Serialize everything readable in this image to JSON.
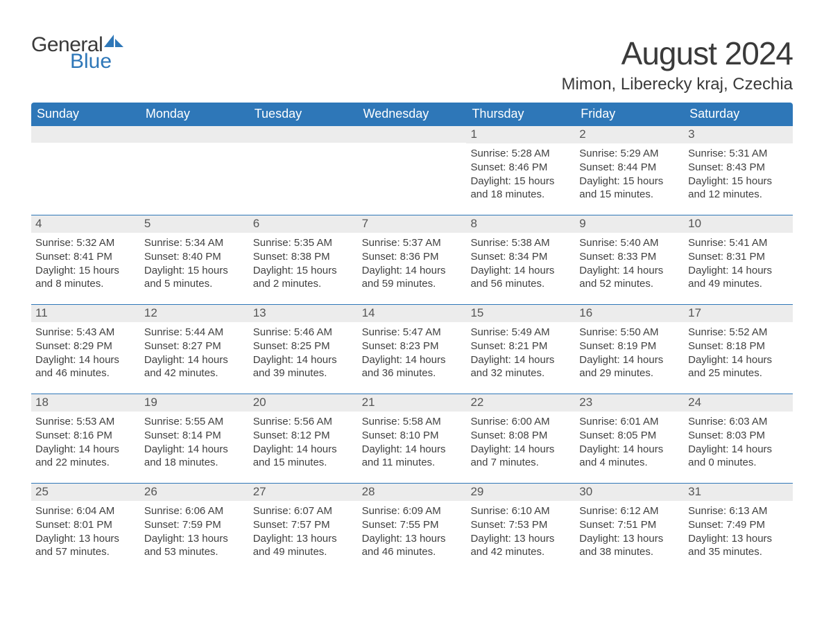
{
  "logo": {
    "text1": "General",
    "text2": "Blue",
    "sail_color": "#2e77b8"
  },
  "title": "August 2024",
  "location": "Mimon, Liberecky kraj, Czechia",
  "colors": {
    "header_bg": "#2e77b8",
    "daynum_bg": "#ececec",
    "row_border": "#2e77b8",
    "text": "#3a3a3a"
  },
  "weekdays": [
    "Sunday",
    "Monday",
    "Tuesday",
    "Wednesday",
    "Thursday",
    "Friday",
    "Saturday"
  ],
  "weeks": [
    [
      null,
      null,
      null,
      null,
      {
        "n": "1",
        "sunrise": "5:28 AM",
        "sunset": "8:46 PM",
        "daylight": "15 hours and 18 minutes."
      },
      {
        "n": "2",
        "sunrise": "5:29 AM",
        "sunset": "8:44 PM",
        "daylight": "15 hours and 15 minutes."
      },
      {
        "n": "3",
        "sunrise": "5:31 AM",
        "sunset": "8:43 PM",
        "daylight": "15 hours and 12 minutes."
      }
    ],
    [
      {
        "n": "4",
        "sunrise": "5:32 AM",
        "sunset": "8:41 PM",
        "daylight": "15 hours and 8 minutes."
      },
      {
        "n": "5",
        "sunrise": "5:34 AM",
        "sunset": "8:40 PM",
        "daylight": "15 hours and 5 minutes."
      },
      {
        "n": "6",
        "sunrise": "5:35 AM",
        "sunset": "8:38 PM",
        "daylight": "15 hours and 2 minutes."
      },
      {
        "n": "7",
        "sunrise": "5:37 AM",
        "sunset": "8:36 PM",
        "daylight": "14 hours and 59 minutes."
      },
      {
        "n": "8",
        "sunrise": "5:38 AM",
        "sunset": "8:34 PM",
        "daylight": "14 hours and 56 minutes."
      },
      {
        "n": "9",
        "sunrise": "5:40 AM",
        "sunset": "8:33 PM",
        "daylight": "14 hours and 52 minutes."
      },
      {
        "n": "10",
        "sunrise": "5:41 AM",
        "sunset": "8:31 PM",
        "daylight": "14 hours and 49 minutes."
      }
    ],
    [
      {
        "n": "11",
        "sunrise": "5:43 AM",
        "sunset": "8:29 PM",
        "daylight": "14 hours and 46 minutes."
      },
      {
        "n": "12",
        "sunrise": "5:44 AM",
        "sunset": "8:27 PM",
        "daylight": "14 hours and 42 minutes."
      },
      {
        "n": "13",
        "sunrise": "5:46 AM",
        "sunset": "8:25 PM",
        "daylight": "14 hours and 39 minutes."
      },
      {
        "n": "14",
        "sunrise": "5:47 AM",
        "sunset": "8:23 PM",
        "daylight": "14 hours and 36 minutes."
      },
      {
        "n": "15",
        "sunrise": "5:49 AM",
        "sunset": "8:21 PM",
        "daylight": "14 hours and 32 minutes."
      },
      {
        "n": "16",
        "sunrise": "5:50 AM",
        "sunset": "8:19 PM",
        "daylight": "14 hours and 29 minutes."
      },
      {
        "n": "17",
        "sunrise": "5:52 AM",
        "sunset": "8:18 PM",
        "daylight": "14 hours and 25 minutes."
      }
    ],
    [
      {
        "n": "18",
        "sunrise": "5:53 AM",
        "sunset": "8:16 PM",
        "daylight": "14 hours and 22 minutes."
      },
      {
        "n": "19",
        "sunrise": "5:55 AM",
        "sunset": "8:14 PM",
        "daylight": "14 hours and 18 minutes."
      },
      {
        "n": "20",
        "sunrise": "5:56 AM",
        "sunset": "8:12 PM",
        "daylight": "14 hours and 15 minutes."
      },
      {
        "n": "21",
        "sunrise": "5:58 AM",
        "sunset": "8:10 PM",
        "daylight": "14 hours and 11 minutes."
      },
      {
        "n": "22",
        "sunrise": "6:00 AM",
        "sunset": "8:08 PM",
        "daylight": "14 hours and 7 minutes."
      },
      {
        "n": "23",
        "sunrise": "6:01 AM",
        "sunset": "8:05 PM",
        "daylight": "14 hours and 4 minutes."
      },
      {
        "n": "24",
        "sunrise": "6:03 AM",
        "sunset": "8:03 PM",
        "daylight": "14 hours and 0 minutes."
      }
    ],
    [
      {
        "n": "25",
        "sunrise": "6:04 AM",
        "sunset": "8:01 PM",
        "daylight": "13 hours and 57 minutes."
      },
      {
        "n": "26",
        "sunrise": "6:06 AM",
        "sunset": "7:59 PM",
        "daylight": "13 hours and 53 minutes."
      },
      {
        "n": "27",
        "sunrise": "6:07 AM",
        "sunset": "7:57 PM",
        "daylight": "13 hours and 49 minutes."
      },
      {
        "n": "28",
        "sunrise": "6:09 AM",
        "sunset": "7:55 PM",
        "daylight": "13 hours and 46 minutes."
      },
      {
        "n": "29",
        "sunrise": "6:10 AM",
        "sunset": "7:53 PM",
        "daylight": "13 hours and 42 minutes."
      },
      {
        "n": "30",
        "sunrise": "6:12 AM",
        "sunset": "7:51 PM",
        "daylight": "13 hours and 38 minutes."
      },
      {
        "n": "31",
        "sunrise": "6:13 AM",
        "sunset": "7:49 PM",
        "daylight": "13 hours and 35 minutes."
      }
    ]
  ],
  "labels": {
    "sunrise": "Sunrise:",
    "sunset": "Sunset:",
    "daylight": "Daylight:"
  }
}
